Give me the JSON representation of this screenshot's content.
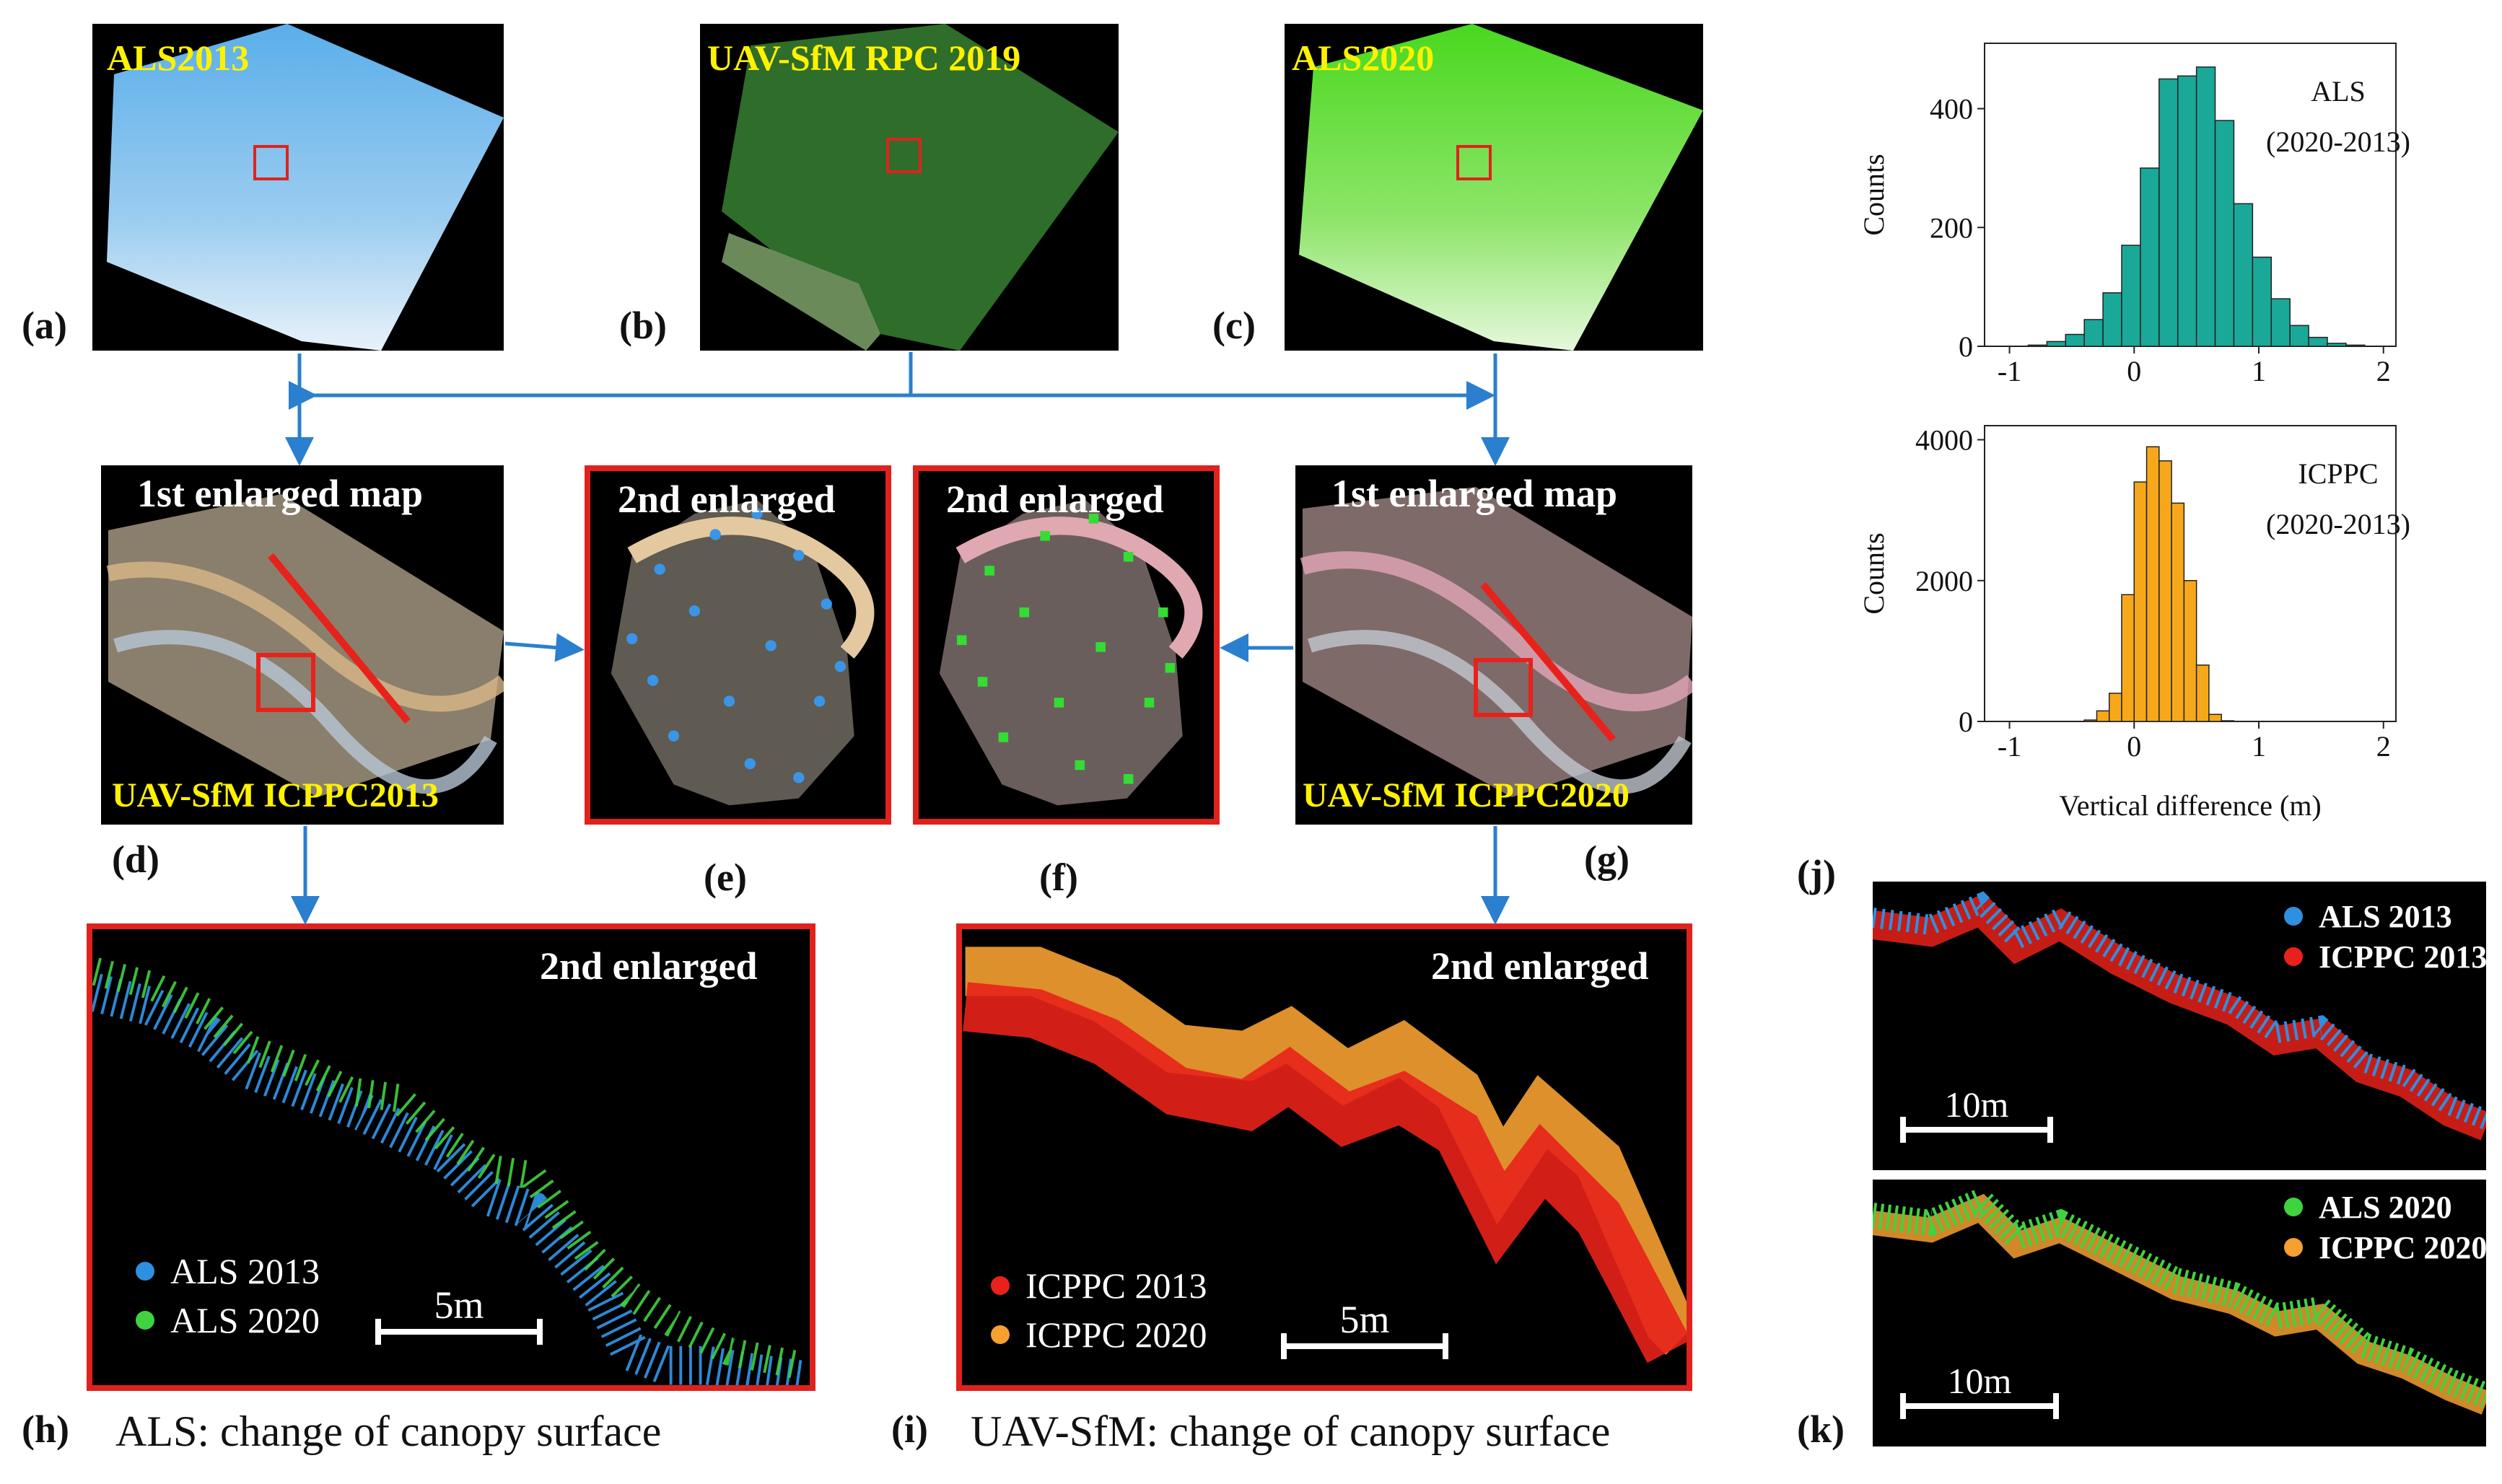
{
  "panels": {
    "a": {
      "label": "(a)",
      "title": "ALS2013"
    },
    "b": {
      "label": "(b)",
      "title": "UAV-SfM RPC 2019"
    },
    "c": {
      "label": "(c)",
      "title": "ALS2020"
    },
    "d": {
      "label": "(d)",
      "title": "1st enlarged map",
      "subtitle": "UAV-SfM ICPPC2013"
    },
    "e": {
      "label": "(e)",
      "title": "2nd enlarged"
    },
    "f": {
      "label": "(f)",
      "title": "2nd enlarged"
    },
    "g": {
      "label": "(g)",
      "title": "1st enlarged map",
      "subtitle": "UAV-SfM ICPPC2020"
    },
    "h": {
      "label": "(h)",
      "title": "2nd enlarged",
      "caption": "ALS: change of canopy surface",
      "legend": [
        "ALS 2013",
        "ALS 2020"
      ],
      "scale": "5m"
    },
    "i": {
      "label": "(i)",
      "title": "2nd enlarged",
      "caption": "UAV-SfM: change of canopy surface",
      "legend": [
        "ICPPC 2013",
        "ICPPC 2020"
      ],
      "scale": "5m"
    },
    "j": {
      "label": "(j)",
      "legend": [
        "ALS 2013",
        "ICPPC 2013"
      ],
      "scale": "10m"
    },
    "k": {
      "label": "(k)",
      "legend": [
        "ALS 2020",
        "ICPPC 2020"
      ],
      "scale": "10m"
    }
  },
  "colors": {
    "als2013": "#2f8fe0",
    "als2020": "#3fd33f",
    "icppc2013": "#e8221a",
    "icppc2020": "#f5a030",
    "frame": "#e0221e",
    "arrow": "#2a7fcf",
    "hist_als": "#1aa898",
    "hist_icppc": "#f7a81a"
  },
  "chart_data": [
    {
      "type": "bar",
      "title": "ALS",
      "subtitle": "(2020-2013)",
      "xlabel": "",
      "ylabel": "Counts",
      "xlim": [
        -1.2,
        2.1
      ],
      "ylim": [
        0,
        510
      ],
      "xticks": [
        -1,
        0,
        1,
        2
      ],
      "yticks": [
        0,
        200,
        400
      ],
      "bin_start": -1.0,
      "bin_width": 0.15,
      "values": [
        0,
        2,
        8,
        20,
        45,
        90,
        170,
        300,
        450,
        455,
        470,
        380,
        240,
        150,
        80,
        35,
        15,
        5,
        2,
        0
      ]
    },
    {
      "type": "bar",
      "title": "ICPPC",
      "subtitle": "(2020-2013)",
      "xlabel": "Vertical difference (m)",
      "ylabel": "Counts",
      "xlim": [
        -1.2,
        2.1
      ],
      "ylim": [
        0,
        4200
      ],
      "xticks": [
        -1,
        0,
        1,
        2
      ],
      "yticks": [
        0,
        2000,
        4000
      ],
      "bin_start": -0.4,
      "bin_width": 0.1,
      "values": [
        20,
        150,
        400,
        1800,
        3400,
        3900,
        3700,
        3100,
        2000,
        800,
        100,
        10
      ]
    }
  ]
}
